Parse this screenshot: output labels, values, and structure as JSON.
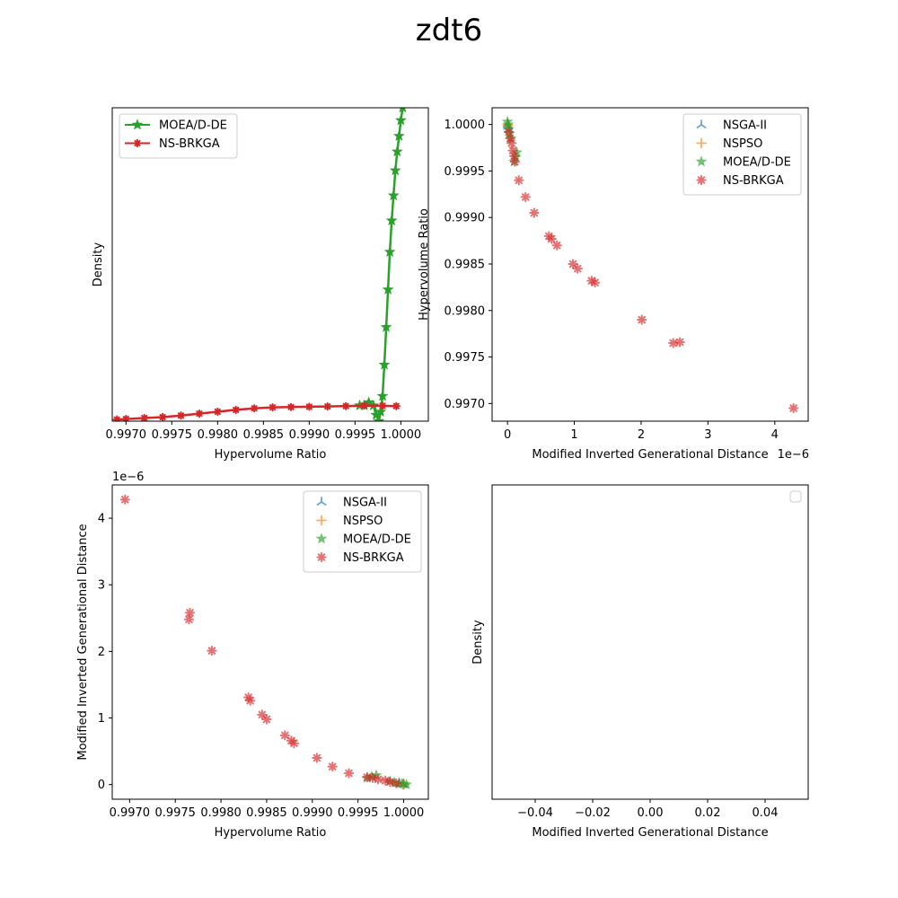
{
  "figure": {
    "title": "zdt6"
  },
  "colors": {
    "NSGA-II": "#1f77b4",
    "NSPSO": "#ff7f0e",
    "MOEA/D-DE": "#2ca02c",
    "NS-BRKGA": "#d62728"
  },
  "chart_data": [
    {
      "type": "line",
      "panel": "top-left",
      "xlabel": "Hypervolume Ratio",
      "ylabel": "Density",
      "xlim": [
        0.99685,
        1.0003
      ],
      "ylim": [
        0,
        1
      ],
      "xticks": [
        "0.9970",
        "0.9975",
        "0.9980",
        "0.9985",
        "0.9990",
        "0.9995",
        "1.0000"
      ],
      "xtick_values": [
        0.997,
        0.9975,
        0.998,
        0.9985,
        0.999,
        0.9995,
        1.0
      ],
      "legend": "top-left",
      "series": [
        {
          "name": "MOEA/D-DE",
          "marker": "star",
          "x": [
            0.99955,
            0.9996,
            0.99965,
            0.9997,
            0.99973,
            0.99976,
            0.99978,
            0.9998,
            0.99982,
            0.99984,
            0.99986,
            0.99988,
            0.9999,
            0.99992,
            0.99994,
            0.99996,
            0.99998,
            1.0,
            1.00002
          ],
          "y": [
            0.05,
            0.05,
            0.06,
            0.05,
            0.02,
            0.0,
            0.03,
            0.08,
            0.18,
            0.3,
            0.42,
            0.54,
            0.64,
            0.72,
            0.8,
            0.86,
            0.91,
            0.96,
            1.0
          ]
        },
        {
          "name": "NS-BRKGA",
          "marker": "x-star",
          "x": [
            0.9969,
            0.997,
            0.9972,
            0.9974,
            0.9976,
            0.9978,
            0.998,
            0.9982,
            0.9984,
            0.9986,
            0.9988,
            0.999,
            0.9992,
            0.9994,
            0.9996,
            0.9998,
            0.99995
          ],
          "y": [
            0.005,
            0.007,
            0.01,
            0.013,
            0.018,
            0.024,
            0.03,
            0.036,
            0.041,
            0.044,
            0.045,
            0.046,
            0.047,
            0.048,
            0.05,
            0.049,
            0.048
          ]
        }
      ]
    },
    {
      "type": "scatter",
      "panel": "top-right",
      "xlabel": "Modified Inverted Generational Distance",
      "ylabel": "Hypervolume Ratio",
      "x_offset_label": "1e−6",
      "xlim": [
        -0.23,
        4.5
      ],
      "ylim": [
        0.99681,
        1.00018
      ],
      "xticks": [
        "0",
        "1",
        "2",
        "3",
        "4"
      ],
      "xtick_values": [
        0,
        1,
        2,
        3,
        4
      ],
      "yticks": [
        "0.9970",
        "0.9975",
        "0.9980",
        "0.9985",
        "0.9990",
        "0.9995",
        "1.0000"
      ],
      "ytick_values": [
        0.997,
        0.9975,
        0.998,
        0.9985,
        0.999,
        0.9995,
        1.0
      ],
      "legend": "top-right",
      "series": [
        {
          "name": "NSGA-II",
          "marker": "tri",
          "x": [
            0.0,
            0.01,
            0.02
          ],
          "y": [
            1.0,
            0.99998,
            0.99995
          ]
        },
        {
          "name": "NSPSO",
          "marker": "plus",
          "x": [
            0.0,
            0.01
          ],
          "y": [
            1.0,
            0.99999
          ]
        },
        {
          "name": "MOEA/D-DE",
          "marker": "star",
          "x": [
            0.0,
            0.01,
            0.02,
            0.03,
            0.05,
            0.1,
            0.12,
            0.14
          ],
          "y": [
            1.00003,
            1.0,
            0.99995,
            0.9999,
            0.99985,
            0.9996,
            0.99965,
            0.9997
          ]
        },
        {
          "name": "NS-BRKGA",
          "marker": "asterisk",
          "x": [
            0.02,
            0.04,
            0.06,
            0.08,
            0.1,
            0.11,
            0.17,
            0.27,
            0.4,
            0.62,
            0.66,
            0.74,
            0.98,
            1.05,
            1.26,
            1.31,
            2.01,
            2.48,
            2.58,
            4.28
          ],
          "y": [
            0.99992,
            0.99985,
            0.9998,
            0.99972,
            0.99966,
            0.9996,
            0.9994,
            0.99922,
            0.99905,
            0.9988,
            0.99877,
            0.9987,
            0.9985,
            0.99845,
            0.99832,
            0.9983,
            0.9979,
            0.99765,
            0.99766,
            0.99695
          ]
        }
      ]
    },
    {
      "type": "scatter",
      "panel": "bottom-left",
      "xlabel": "Hypervolume Ratio",
      "ylabel": "Modified Inverted Generational Distance",
      "y_offset_label": "1e−6",
      "xlim": [
        0.99681,
        1.00027
      ],
      "ylim": [
        -0.22,
        4.5
      ],
      "xticks": [
        "0.9970",
        "0.9975",
        "0.9980",
        "0.9985",
        "0.9990",
        "0.9995",
        "1.0000"
      ],
      "xtick_values": [
        0.997,
        0.9975,
        0.998,
        0.9985,
        0.999,
        0.9995,
        1.0
      ],
      "yticks": [
        "0",
        "1",
        "2",
        "3",
        "4"
      ],
      "ytick_values": [
        0,
        1,
        2,
        3,
        4
      ],
      "legend": "top-right",
      "series": [
        {
          "name": "NSGA-II",
          "marker": "tri",
          "x": [
            1.0,
            0.99998,
            0.99995
          ],
          "y": [
            0.0,
            0.01,
            0.02
          ]
        },
        {
          "name": "NSPSO",
          "marker": "plus",
          "x": [
            1.0,
            0.99999
          ],
          "y": [
            0.0,
            0.01
          ]
        },
        {
          "name": "MOEA/D-DE",
          "marker": "star",
          "x": [
            1.00003,
            1.0,
            0.99995,
            0.9999,
            0.99985,
            0.9996,
            0.99965,
            0.9997
          ],
          "y": [
            0.0,
            0.01,
            0.02,
            0.03,
            0.05,
            0.1,
            0.12,
            0.14
          ]
        },
        {
          "name": "NS-BRKGA",
          "marker": "asterisk",
          "x": [
            0.99992,
            0.99985,
            0.9998,
            0.99972,
            0.99966,
            0.9996,
            0.9994,
            0.99922,
            0.99905,
            0.9988,
            0.99877,
            0.9987,
            0.9985,
            0.99845,
            0.99832,
            0.9983,
            0.9979,
            0.99765,
            0.99766,
            0.99695
          ],
          "y": [
            0.02,
            0.04,
            0.06,
            0.08,
            0.1,
            0.11,
            0.17,
            0.27,
            0.4,
            0.62,
            0.66,
            0.74,
            0.98,
            1.05,
            1.26,
            1.31,
            2.01,
            2.48,
            2.58,
            4.28
          ]
        }
      ]
    },
    {
      "type": "line",
      "panel": "bottom-right",
      "xlabel": "Modified Inverted Generational Distance",
      "ylabel": "Density",
      "xlim": [
        -0.055,
        0.055
      ],
      "ylim": [
        0,
        1
      ],
      "xticks": [
        "−0.04",
        "−0.02",
        "0.00",
        "0.02",
        "0.04"
      ],
      "xtick_values": [
        -0.04,
        -0.02,
        0.0,
        0.02,
        0.04
      ],
      "legend": "top-right",
      "series": []
    }
  ]
}
